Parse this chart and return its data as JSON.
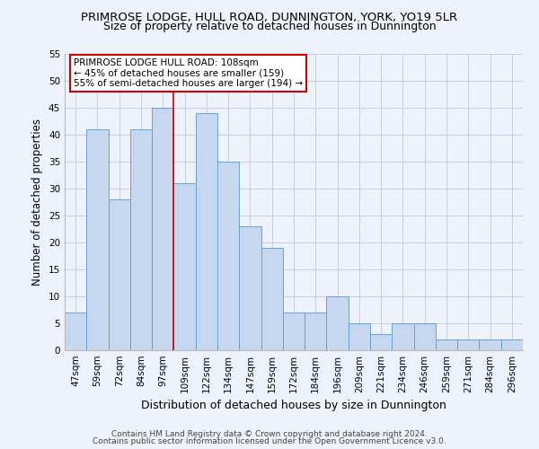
{
  "title": "PRIMROSE LODGE, HULL ROAD, DUNNINGTON, YORK, YO19 5LR",
  "subtitle": "Size of property relative to detached houses in Dunnington",
  "xlabel": "Distribution of detached houses by size in Dunnington",
  "ylabel": "Number of detached properties",
  "categories": [
    "47sqm",
    "59sqm",
    "72sqm",
    "84sqm",
    "97sqm",
    "109sqm",
    "122sqm",
    "134sqm",
    "147sqm",
    "159sqm",
    "172sqm",
    "184sqm",
    "196sqm",
    "209sqm",
    "221sqm",
    "234sqm",
    "246sqm",
    "259sqm",
    "271sqm",
    "284sqm",
    "296sqm"
  ],
  "values": [
    7,
    41,
    28,
    41,
    45,
    31,
    44,
    35,
    23,
    19,
    7,
    7,
    10,
    5,
    3,
    5,
    5,
    2,
    2,
    2,
    2
  ],
  "bar_color": "#c5d8f0",
  "bar_edge_color": "#6aa0d4",
  "highlight_line_index": 5,
  "highlight_line_color": "#cc0000",
  "annotation_text": "PRIMROSE LODGE HULL ROAD: 108sqm\n← 45% of detached houses are smaller (159)\n55% of semi-detached houses are larger (194) →",
  "annotation_box_color": "#ffffff",
  "annotation_box_edge_color": "#cc0000",
  "ylim": [
    0,
    55
  ],
  "yticks": [
    0,
    5,
    10,
    15,
    20,
    25,
    30,
    35,
    40,
    45,
    50,
    55
  ],
  "footer1": "Contains HM Land Registry data © Crown copyright and database right 2024.",
  "footer2": "Contains public sector information licensed under the Open Government Licence v3.0.",
  "background_color": "#eef2fa",
  "title_fontsize": 9.5,
  "subtitle_fontsize": 9,
  "axis_label_fontsize": 8.5,
  "tick_fontsize": 7.5,
  "footer_fontsize": 6.5,
  "annotation_fontsize": 7.5
}
